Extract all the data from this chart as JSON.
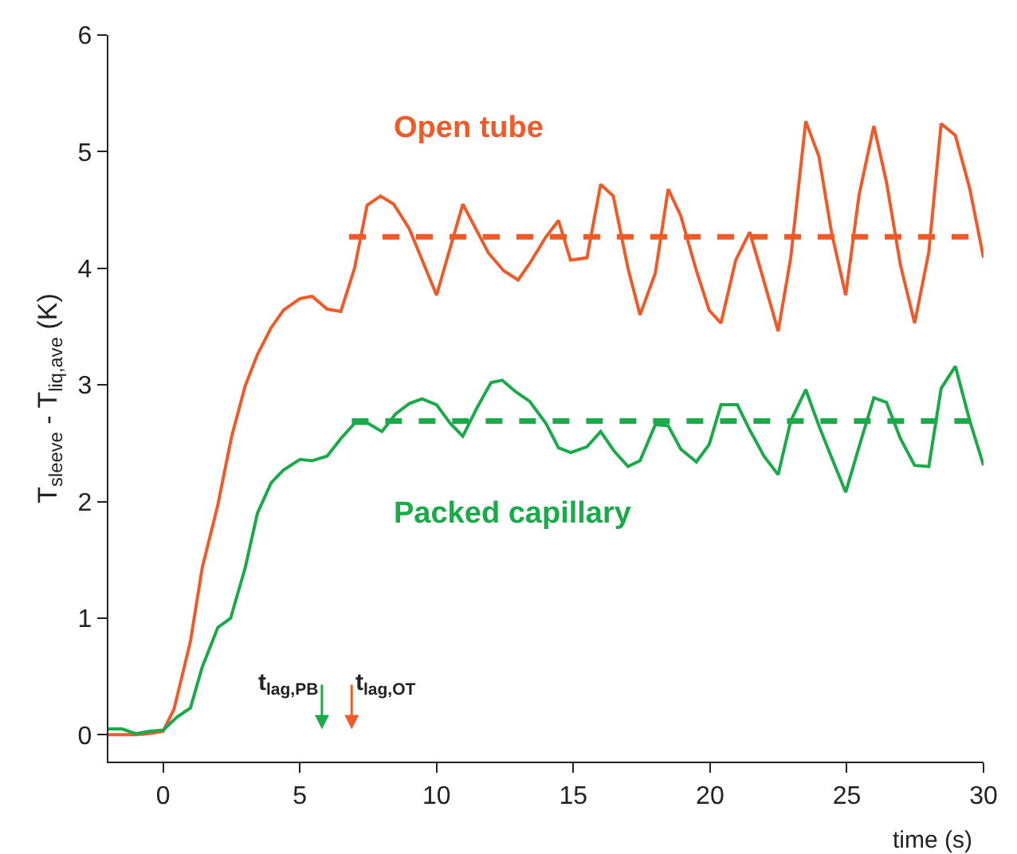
{
  "chart_data": {
    "type": "line",
    "xlabel": "time (s)",
    "ylabel": "T$_{sleeve}$ - T$_{liq,ave}$ (K)",
    "xlim": [
      -2,
      30
    ],
    "xticks": [
      0,
      5,
      10,
      15,
      20,
      25,
      30
    ],
    "ylim": [
      -0.23,
      6
    ],
    "yticks": [
      0,
      1,
      2,
      3,
      4,
      5,
      6
    ],
    "legend": false,
    "marker": "none",
    "series": [
      {
        "name": "Open tube",
        "color": "#f05a28",
        "line_style": "solid",
        "x": [
          -2,
          -1.5,
          -1,
          -0.5,
          0,
          0.4,
          1.0,
          1.43,
          2.0,
          2.5,
          3.0,
          3.45,
          3.95,
          4.4,
          5.0,
          5.45,
          6.0,
          6.5,
          7.0,
          7.46,
          7.95,
          8.43,
          9.0,
          10.0,
          10.96,
          11.9,
          12.45,
          12.98,
          13.4,
          14.0,
          14.46,
          14.9,
          15.5,
          16.0,
          16.46,
          17.0,
          17.44,
          18.0,
          18.47,
          18.93,
          19.5,
          19.97,
          20.4,
          20.94,
          21.45,
          21.97,
          22.49,
          22.95,
          23.5,
          23.98,
          24.44,
          24.96,
          25.45,
          25.99,
          26.45,
          26.96,
          27.48,
          28.0,
          28.45,
          28.97,
          29.5,
          30.0
        ],
        "values": [
          0.0,
          0.0,
          0.0,
          0.01,
          0.03,
          0.22,
          0.8,
          1.43,
          1.97,
          2.55,
          2.99,
          3.26,
          3.49,
          3.64,
          3.74,
          3.76,
          3.65,
          3.63,
          4.0,
          4.54,
          4.62,
          4.55,
          4.34,
          3.77,
          4.55,
          4.13,
          3.98,
          3.9,
          4.04,
          4.27,
          4.41,
          4.07,
          4.09,
          4.72,
          4.62,
          4.0,
          3.6,
          3.96,
          4.68,
          4.45,
          3.98,
          3.64,
          3.53,
          4.07,
          4.31,
          3.89,
          3.46,
          4.09,
          5.26,
          4.96,
          4.31,
          3.77,
          4.63,
          5.22,
          4.74,
          4.03,
          3.53,
          4.14,
          5.24,
          5.14,
          4.68,
          4.09
        ]
      },
      {
        "name": "Packed capillary",
        "color": "#1aaa4a",
        "line_style": "solid",
        "x": [
          -2,
          -1.5,
          -1,
          -0.5,
          0,
          0.5,
          1.0,
          1.43,
          2.0,
          2.47,
          3.0,
          3.45,
          3.95,
          4.4,
          5.0,
          5.45,
          6.0,
          6.5,
          7.0,
          7.5,
          8.0,
          8.5,
          9.0,
          9.47,
          10.0,
          10.5,
          10.96,
          11.47,
          11.99,
          12.4,
          12.9,
          13.4,
          14.0,
          14.46,
          14.9,
          15.5,
          16.0,
          16.5,
          17.0,
          17.44,
          18.0,
          18.47,
          18.93,
          19.5,
          19.97,
          20.4,
          21.0,
          21.46,
          21.97,
          22.49,
          22.95,
          23.5,
          23.98,
          24.44,
          24.96,
          25.45,
          25.99,
          26.45,
          26.96,
          27.48,
          28.0,
          28.45,
          28.97,
          29.5,
          30.0
        ],
        "values": [
          0.05,
          0.05,
          0.01,
          0.03,
          0.04,
          0.15,
          0.23,
          0.58,
          0.92,
          1.0,
          1.43,
          1.9,
          2.16,
          2.27,
          2.36,
          2.35,
          2.39,
          2.54,
          2.67,
          2.67,
          2.6,
          2.75,
          2.84,
          2.88,
          2.83,
          2.67,
          2.56,
          2.8,
          3.02,
          3.04,
          2.94,
          2.86,
          2.67,
          2.46,
          2.42,
          2.47,
          2.6,
          2.43,
          2.3,
          2.35,
          2.66,
          2.65,
          2.45,
          2.34,
          2.49,
          2.83,
          2.83,
          2.61,
          2.39,
          2.23,
          2.69,
          2.96,
          2.65,
          2.38,
          2.08,
          2.47,
          2.89,
          2.85,
          2.54,
          2.31,
          2.3,
          2.97,
          3.16,
          2.69,
          2.31
        ]
      },
      {
        "color": "#f05a28",
        "line_style": "dashed",
        "x": [
          6.8,
          30
        ],
        "values": [
          4.27,
          4.27
        ]
      },
      {
        "color": "#1aaa4a",
        "line_style": "dashed",
        "x": [
          6.9,
          30
        ],
        "values": [
          2.69,
          2.69
        ]
      }
    ],
    "annotations": [
      "t$_{lag,PB}$",
      "t$_{lag,OT}$"
    ]
  }
}
